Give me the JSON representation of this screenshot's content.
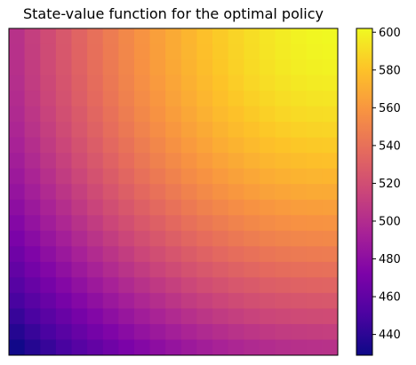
{
  "chart_data": {
    "type": "heatmap",
    "title": "State-value function for the optimal policy",
    "xlabel": "",
    "ylabel": "",
    "grid": false,
    "rows": 21,
    "cols": 21,
    "value_model": {
      "description_of_grid": "value at column c (0 = left) and row r (0 = top)",
      "v_max": 601.5,
      "v_min": 430.5,
      "peak_col": 20,
      "peak_row": 0
    },
    "colorbar": {
      "colormap": "plasma",
      "vmin": 429,
      "vmax": 602,
      "ticks": [
        440,
        460,
        480,
        500,
        520,
        540,
        560,
        580,
        600
      ],
      "tick_labels": [
        "440",
        "460",
        "480",
        "500",
        "520",
        "540",
        "560",
        "580",
        "600"
      ]
    }
  }
}
